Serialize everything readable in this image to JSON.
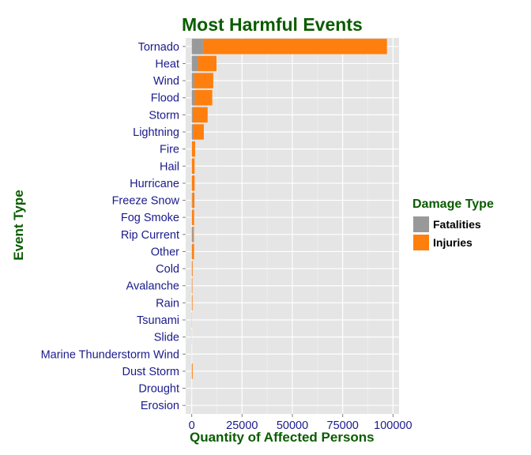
{
  "chart_data": {
    "type": "bar",
    "orientation": "horizontal",
    "stacked": true,
    "title": "Most Harmful Events",
    "xlabel": "Quantity of Affected Persons",
    "ylabel": "Event Type",
    "xlim": [
      -3000,
      103000
    ],
    "xticks": [
      0,
      25000,
      50000,
      75000,
      100000
    ],
    "xtick_labels": [
      "0",
      "25000",
      "50000",
      "75000",
      "100000"
    ],
    "grid": true,
    "legend_position": "right",
    "legend_title": "Damage Type",
    "categories": [
      "Tornado",
      "Heat",
      "Wind",
      "Flood",
      "Storm",
      "Lightning",
      "Fire",
      "Hail",
      "Hurricane",
      "Freeze Snow",
      "Fog Smoke",
      "Rip Current",
      "Other",
      "Cold",
      "Avalanche",
      "Rain",
      "Tsunami",
      "Slide",
      "Marine Thunderstorm Wind",
      "Dust Storm",
      "Drought",
      "Erosion"
    ],
    "series": [
      {
        "name": "Fatalities",
        "color": "#999999",
        "values": [
          5600,
          3100,
          1300,
          1500,
          500,
          800,
          90,
          20,
          130,
          250,
          80,
          570,
          150,
          200,
          220,
          110,
          30,
          40,
          20,
          20,
          4,
          3
        ]
      },
      {
        "name": "Injuries",
        "color": "#FF7F0E",
        "values": [
          91400,
          9200,
          9400,
          8700,
          7400,
          5200,
          1600,
          1400,
          1300,
          1100,
          1100,
          530,
          1000,
          300,
          170,
          280,
          130,
          60,
          30,
          440,
          20,
          5
        ]
      }
    ]
  }
}
